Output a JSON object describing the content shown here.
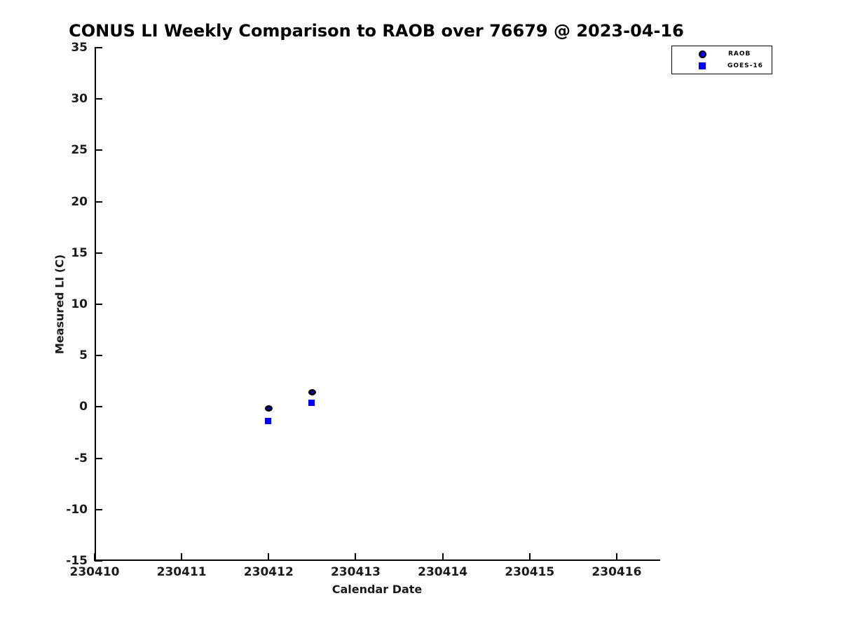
{
  "figure": {
    "background_color": "#ffffff",
    "axis_color": "#000000",
    "accent_blue": "#0000ff"
  },
  "chart_data": {
    "type": "scatter",
    "title": "CONUS LI Weekly Comparison to RAOB over 76679 @ 2023-04-16",
    "xlabel": "Calendar Date",
    "ylabel": "Measured LI (C)",
    "xlim": [
      230410,
      230416.5
    ],
    "ylim": [
      -15,
      35
    ],
    "x_ticks": [
      230410,
      230411,
      230412,
      230413,
      230414,
      230415,
      230416
    ],
    "y_ticks": [
      -15,
      -10,
      -5,
      0,
      5,
      10,
      15,
      20,
      25,
      30,
      35
    ],
    "grid": false,
    "legend": {
      "position": "top-right",
      "entries": [
        {
          "label": "RAOB",
          "marker": "circle",
          "face_color": "#0000ff",
          "edge_color": "#000000"
        },
        {
          "label": "GOES-16",
          "marker": "square",
          "face_color": "#0000ff",
          "edge_color": "#0000ff"
        }
      ]
    },
    "series": [
      {
        "name": "RAOB",
        "marker": "circle",
        "face_color": "#0000ff",
        "edge_color": "#000000",
        "points": [
          {
            "x": 230412.0,
            "y": -0.2
          },
          {
            "x": 230412.5,
            "y": 1.4
          }
        ]
      },
      {
        "name": "GOES-16",
        "marker": "square",
        "face_color": "#0000ff",
        "edge_color": "#0000ff",
        "points": [
          {
            "x": 230412.0,
            "y": -1.4
          },
          {
            "x": 230412.5,
            "y": 0.4
          }
        ]
      }
    ]
  }
}
